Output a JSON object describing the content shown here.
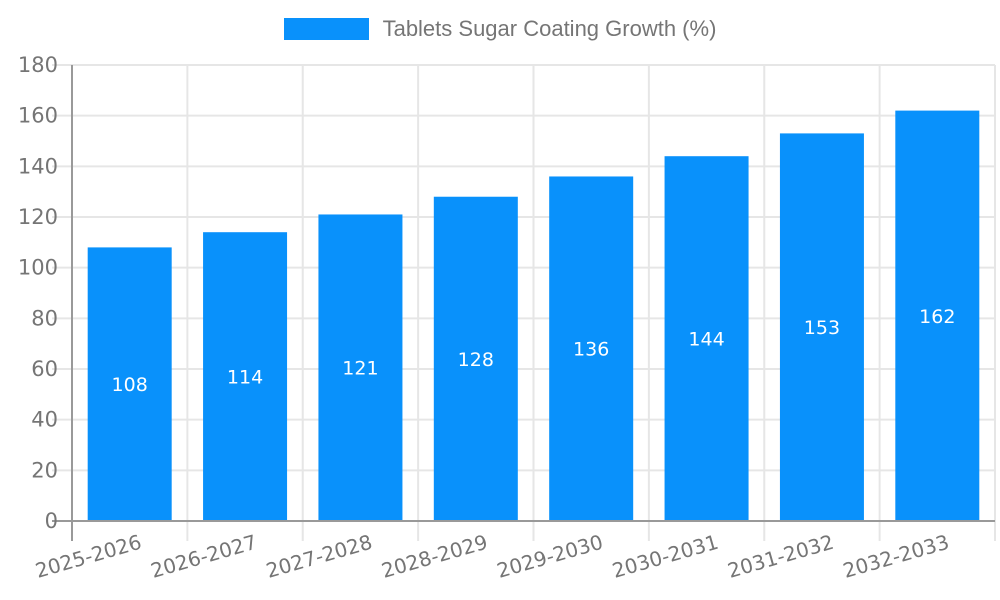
{
  "legend": {
    "label": "Tablets Sugar Coating Growth (%)",
    "swatch_color": "#0991FB"
  },
  "chart_data": {
    "type": "bar",
    "title": "Tablets Sugar Coating Growth (%)",
    "categories": [
      "2025-2026",
      "2026-2027",
      "2027-2028",
      "2028-2029",
      "2029-2030",
      "2030-2031",
      "2031-2032",
      "2032-2033"
    ],
    "series": [
      {
        "name": "Tablets Sugar Coating Growth (%)",
        "color": "#0991FB",
        "values": [
          108,
          114,
          121,
          128,
          136,
          144,
          153,
          162
        ]
      }
    ],
    "xlabel": "",
    "ylabel": "",
    "ylim": [
      0,
      180
    ],
    "yticks": [
      0,
      20,
      40,
      60,
      80,
      100,
      120,
      140,
      160,
      180
    ],
    "grid": true,
    "legend_position": "top-center",
    "bar_value_labels": true,
    "x_label_rotation_deg": -16,
    "colors": {
      "bar": "#0991FB",
      "axis": "#999999",
      "grid": "#e6e6e6",
      "tick_label": "#757575",
      "value_label": "#ffffff",
      "background": "#ffffff"
    }
  }
}
